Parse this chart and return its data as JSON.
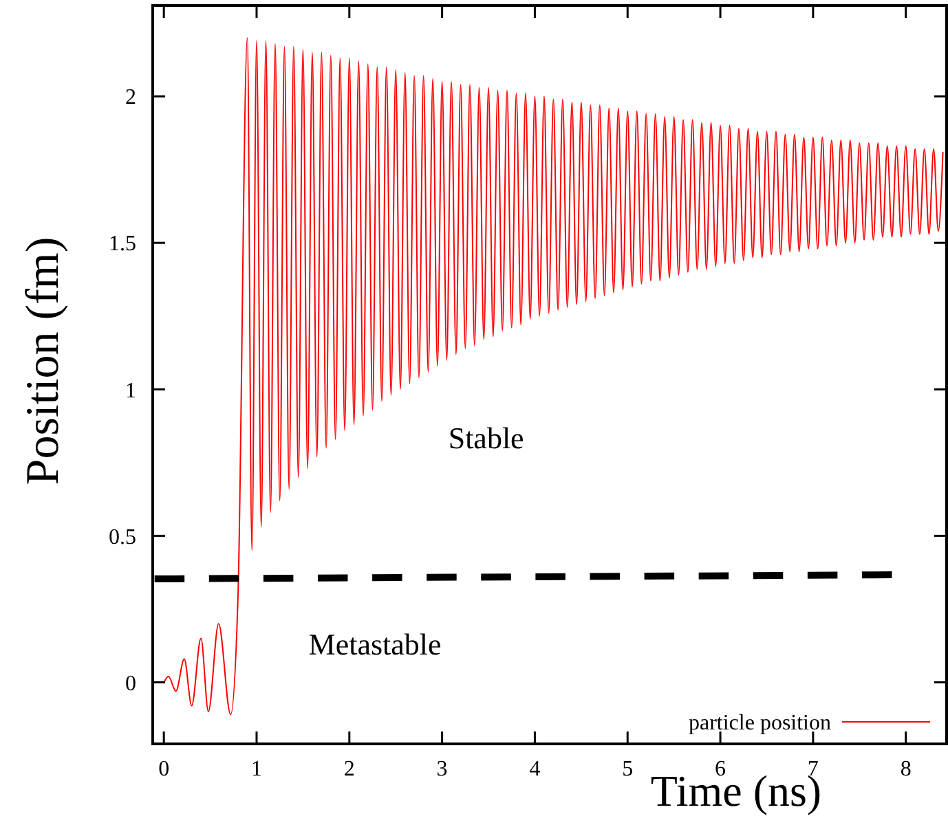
{
  "chart_data": {
    "type": "line",
    "xlabel": "Time (ns)",
    "ylabel": "Position (fm)",
    "xlim": [
      -0.12,
      8.44
    ],
    "ylim": [
      -0.21,
      2.31
    ],
    "xticks": [
      0,
      1,
      2,
      3,
      4,
      5,
      6,
      7,
      8
    ],
    "yticks": [
      0,
      0.5,
      1,
      1.5,
      2
    ],
    "legend": "bottom right",
    "annotations": [
      "Stable",
      "Metastable"
    ],
    "series": [
      {
        "name": "particle position",
        "color": "#ff0000",
        "line_style": "solid",
        "x": [
          0,
          0.05,
          0.13,
          0.22,
          0.3,
          0.4,
          0.48,
          0.59,
          0.72,
          0.8,
          0.9,
          0.95,
          1.0,
          1.05,
          1.1,
          1.15,
          1.2,
          1.25,
          1.3,
          1.35,
          1.4,
          1.45,
          1.5,
          1.55,
          1.6,
          1.65,
          1.7,
          1.75,
          1.8,
          1.85,
          1.9,
          1.95,
          2.0,
          2.05,
          2.1,
          2.15,
          2.2,
          2.25,
          2.3,
          2.35,
          2.4,
          2.45,
          2.5,
          2.55,
          2.6,
          2.65,
          2.7,
          2.75,
          2.8,
          2.85,
          2.9,
          2.95,
          3.0,
          3.05,
          3.1,
          3.15,
          3.2,
          3.25,
          3.3,
          3.35,
          3.4,
          3.45,
          3.5,
          3.55,
          3.6,
          3.65,
          3.7,
          3.75,
          3.8,
          3.85,
          3.9,
          3.95,
          4.0,
          4.05,
          4.1,
          4.15,
          4.2,
          4.25,
          4.3,
          4.35,
          4.4,
          4.45,
          4.5,
          4.55,
          4.6,
          4.65,
          4.7,
          4.75,
          4.8,
          4.85,
          4.9,
          4.95,
          5.0,
          5.05,
          5.1,
          5.15,
          5.2,
          5.25,
          5.3,
          5.35,
          5.4,
          5.45,
          5.5,
          5.55,
          5.6,
          5.65,
          5.7,
          5.75,
          5.8,
          5.85,
          5.9,
          5.95,
          6.0,
          6.05,
          6.1,
          6.15,
          6.2,
          6.25,
          6.3,
          6.35,
          6.4,
          6.45,
          6.5,
          6.55,
          6.6,
          6.65,
          6.7,
          6.75,
          6.8,
          6.85,
          6.9,
          6.95,
          7.0,
          7.05,
          7.1,
          7.15,
          7.2,
          7.25,
          7.3,
          7.35,
          7.4,
          7.45,
          7.5,
          7.55,
          7.6,
          7.65,
          7.7,
          7.75,
          7.8,
          7.85,
          7.9,
          7.95,
          8.0,
          8.05,
          8.1,
          8.15,
          8.2,
          8.25,
          8.3,
          8.35,
          8.4
        ],
        "values": [
          0,
          0.02,
          -0.03,
          0.08,
          -0.08,
          0.15,
          -0.1,
          0.2,
          -0.11,
          0.3,
          2.2,
          0.45,
          2.19,
          0.53,
          2.19,
          0.58,
          2.18,
          0.62,
          2.17,
          0.66,
          2.17,
          0.7,
          2.16,
          0.73,
          2.15,
          0.77,
          2.15,
          0.8,
          2.14,
          0.83,
          2.13,
          0.86,
          2.13,
          0.88,
          2.12,
          0.91,
          2.11,
          0.93,
          2.1,
          0.96,
          2.1,
          0.98,
          2.09,
          1.0,
          2.08,
          1.02,
          2.07,
          1.04,
          2.07,
          1.06,
          2.06,
          1.08,
          2.05,
          1.1,
          2.05,
          1.12,
          2.04,
          1.14,
          2.04,
          1.15,
          2.03,
          1.17,
          2.03,
          1.18,
          2.02,
          1.2,
          2.02,
          1.21,
          2.01,
          1.22,
          2.01,
          1.24,
          2.0,
          1.25,
          2.0,
          1.26,
          1.99,
          1.27,
          1.99,
          1.28,
          1.98,
          1.29,
          1.98,
          1.3,
          1.97,
          1.31,
          1.97,
          1.32,
          1.96,
          1.33,
          1.96,
          1.34,
          1.95,
          1.35,
          1.95,
          1.36,
          1.94,
          1.37,
          1.94,
          1.37,
          1.93,
          1.38,
          1.93,
          1.39,
          1.92,
          1.4,
          1.92,
          1.41,
          1.91,
          1.41,
          1.91,
          1.42,
          1.9,
          1.43,
          1.9,
          1.43,
          1.89,
          1.44,
          1.89,
          1.45,
          1.88,
          1.45,
          1.88,
          1.46,
          1.88,
          1.46,
          1.87,
          1.47,
          1.87,
          1.47,
          1.86,
          1.48,
          1.86,
          1.48,
          1.86,
          1.49,
          1.85,
          1.49,
          1.85,
          1.5,
          1.85,
          1.5,
          1.84,
          1.51,
          1.84,
          1.51,
          1.84,
          1.52,
          1.83,
          1.52,
          1.83,
          1.52,
          1.83,
          1.53,
          1.82,
          1.53,
          1.82,
          1.53,
          1.82,
          1.54,
          1.81
        ]
      },
      {
        "color": "#000000",
        "line_style": "dashed",
        "x": [
          -0.1,
          7.85
        ],
        "values": [
          0.353,
          0.367
        ]
      }
    ]
  }
}
